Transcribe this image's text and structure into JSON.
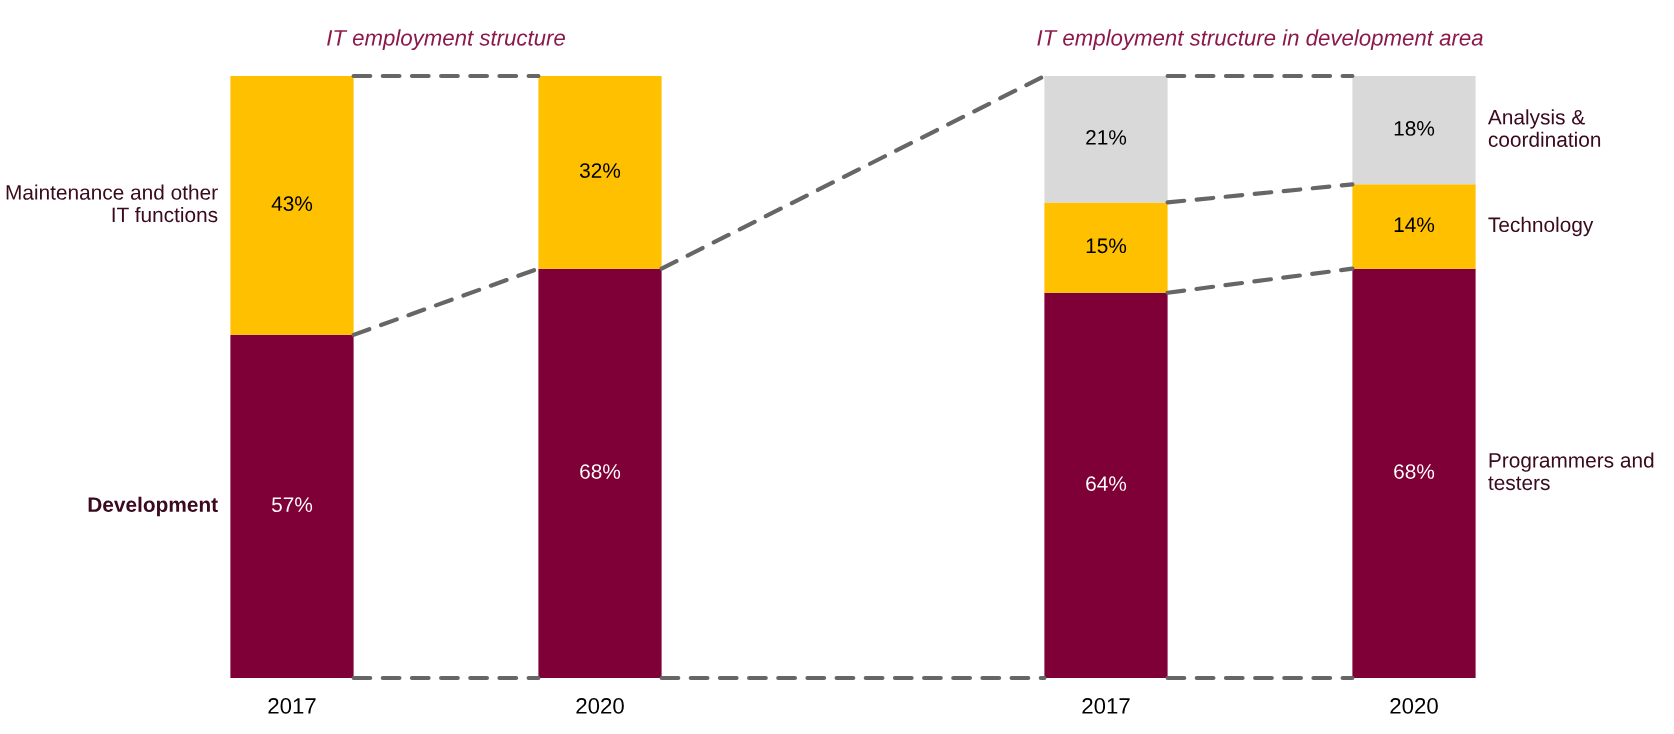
{
  "chart_data": [
    {
      "type": "bar",
      "title": "IT employment structure",
      "categories": [
        "2017",
        "2020"
      ],
      "stacked": true,
      "tick_labels": "x",
      "legend": "left",
      "grid": false,
      "series": [
        {
          "name": "Development",
          "color": "#7f0037",
          "values": [
            57,
            68
          ],
          "value_labels": [
            "57%",
            "68%"
          ]
        },
        {
          "name": "Maintenance and other IT functions",
          "color": "#ffc000",
          "values": [
            43,
            32
          ],
          "value_labels": [
            "43%",
            "32%"
          ]
        }
      ]
    },
    {
      "type": "bar",
      "title": "IT employment structure in development area",
      "categories": [
        "2017",
        "2020"
      ],
      "stacked": true,
      "tick_labels": "x",
      "legend": "right",
      "grid": false,
      "series": [
        {
          "name": "Programmers and testers",
          "color": "#7f0037",
          "values": [
            64,
            68
          ],
          "value_labels": [
            "64%",
            "68%"
          ]
        },
        {
          "name": "Technology",
          "color": "#ffc000",
          "values": [
            15,
            14
          ],
          "value_labels": [
            "15%",
            "14%"
          ]
        },
        {
          "name": "Analysis & coordination",
          "color": "#d9d9d9",
          "values": [
            21,
            18
          ],
          "value_labels": [
            "21%",
            "18%"
          ]
        }
      ]
    }
  ]
}
